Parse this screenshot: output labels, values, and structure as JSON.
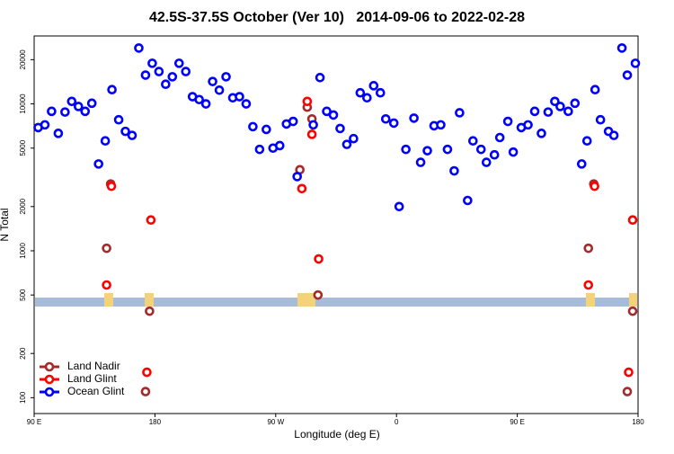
{
  "chart_data": {
    "type": "scatter",
    "title": "42.5S-37.5S October (Ver 10)   2014-09-06 to 2022-02-28",
    "x_label": "Longitude (deg E)",
    "y_label": "N Total",
    "log_y": true,
    "legend": "bottom-left",
    "xlim": [
      90,
      540
    ],
    "ylim": [
      78,
      29000
    ],
    "xticks": [
      {
        "value": 90,
        "label": "90 E"
      },
      180,
      {
        "value": 270,
        "label": "90 W"
      },
      {
        "value": 360,
        "label": "0"
      },
      {
        "value": 450,
        "label": "90 E"
      },
      {
        "value": 540,
        "label": "180"
      }
    ],
    "yticks": [
      100,
      200,
      500,
      1000,
      2000,
      5000,
      10000,
      20000
    ],
    "series": [
      {
        "name": "Land Nadir",
        "color": "#a52a2a",
        "x": [
          144,
          147,
          173,
          176,
          288,
          293.5,
          297,
          301.5,
          503,
          507,
          532,
          536
        ],
        "values": [
          1040,
          2850,
          110,
          388,
          3560,
          9500,
          7900,
          500,
          1040,
          2850,
          110,
          388
        ]
      },
      {
        "name": "Land Glint",
        "color": "#ff0000",
        "x": [
          144,
          147.6,
          174,
          177,
          289.5,
          293.5,
          297,
          302,
          503,
          507.6,
          533,
          536
        ],
        "values": [
          585,
          2750,
          149,
          1620,
          2650,
          10400,
          6200,
          880,
          585,
          2750,
          149,
          1620
        ]
      },
      {
        "name": "Ocean Glint",
        "color": "#0000ff",
        "x": [
          93,
          98,
          103,
          108,
          113,
          118,
          123,
          128,
          133,
          138,
          143,
          148,
          153,
          158,
          163,
          168,
          173,
          178,
          183,
          188,
          193,
          198,
          203,
          208,
          213,
          218,
          223,
          228,
          233,
          238,
          243,
          248,
          253,
          258,
          263,
          268,
          273,
          278,
          283,
          286,
          298,
          303,
          308,
          313,
          318,
          323,
          328,
          333,
          338,
          343,
          348,
          352,
          358,
          362,
          367,
          373,
          378,
          383,
          388,
          393,
          398,
          403,
          407,
          413,
          417,
          423,
          427,
          433,
          437,
          443,
          447,
          453,
          458,
          463,
          468,
          473,
          478,
          482,
          488,
          493,
          498,
          502,
          508,
          512,
          518,
          522,
          528,
          532,
          538
        ],
        "values": [
          6900,
          7200,
          8900,
          6300,
          8800,
          10400,
          9600,
          8900,
          10100,
          3900,
          5600,
          12500,
          7800,
          6500,
          6100,
          24000,
          15700,
          18900,
          16600,
          13600,
          15300,
          18900,
          16600,
          11200,
          10700,
          10000,
          14200,
          12400,
          15300,
          11000,
          11200,
          10000,
          7000,
          4900,
          6700,
          5000,
          5200,
          7300,
          7600,
          3200,
          7200,
          15100,
          8900,
          8400,
          6800,
          5300,
          5800,
          11900,
          11000,
          13300,
          11900,
          7900,
          7400,
          2000,
          4900,
          8000,
          4000,
          4800,
          7100,
          7200,
          4900,
          3500,
          8700,
          2200,
          5600,
          4900,
          4000,
          4500,
          5900,
          7600,
          4700,
          6900,
          7200,
          8900,
          6300,
          8800,
          10400,
          9600,
          8900,
          10100,
          3900,
          5600,
          12500,
          7800,
          6500,
          6100,
          24000,
          15700,
          18900
        ]
      }
    ]
  }
}
